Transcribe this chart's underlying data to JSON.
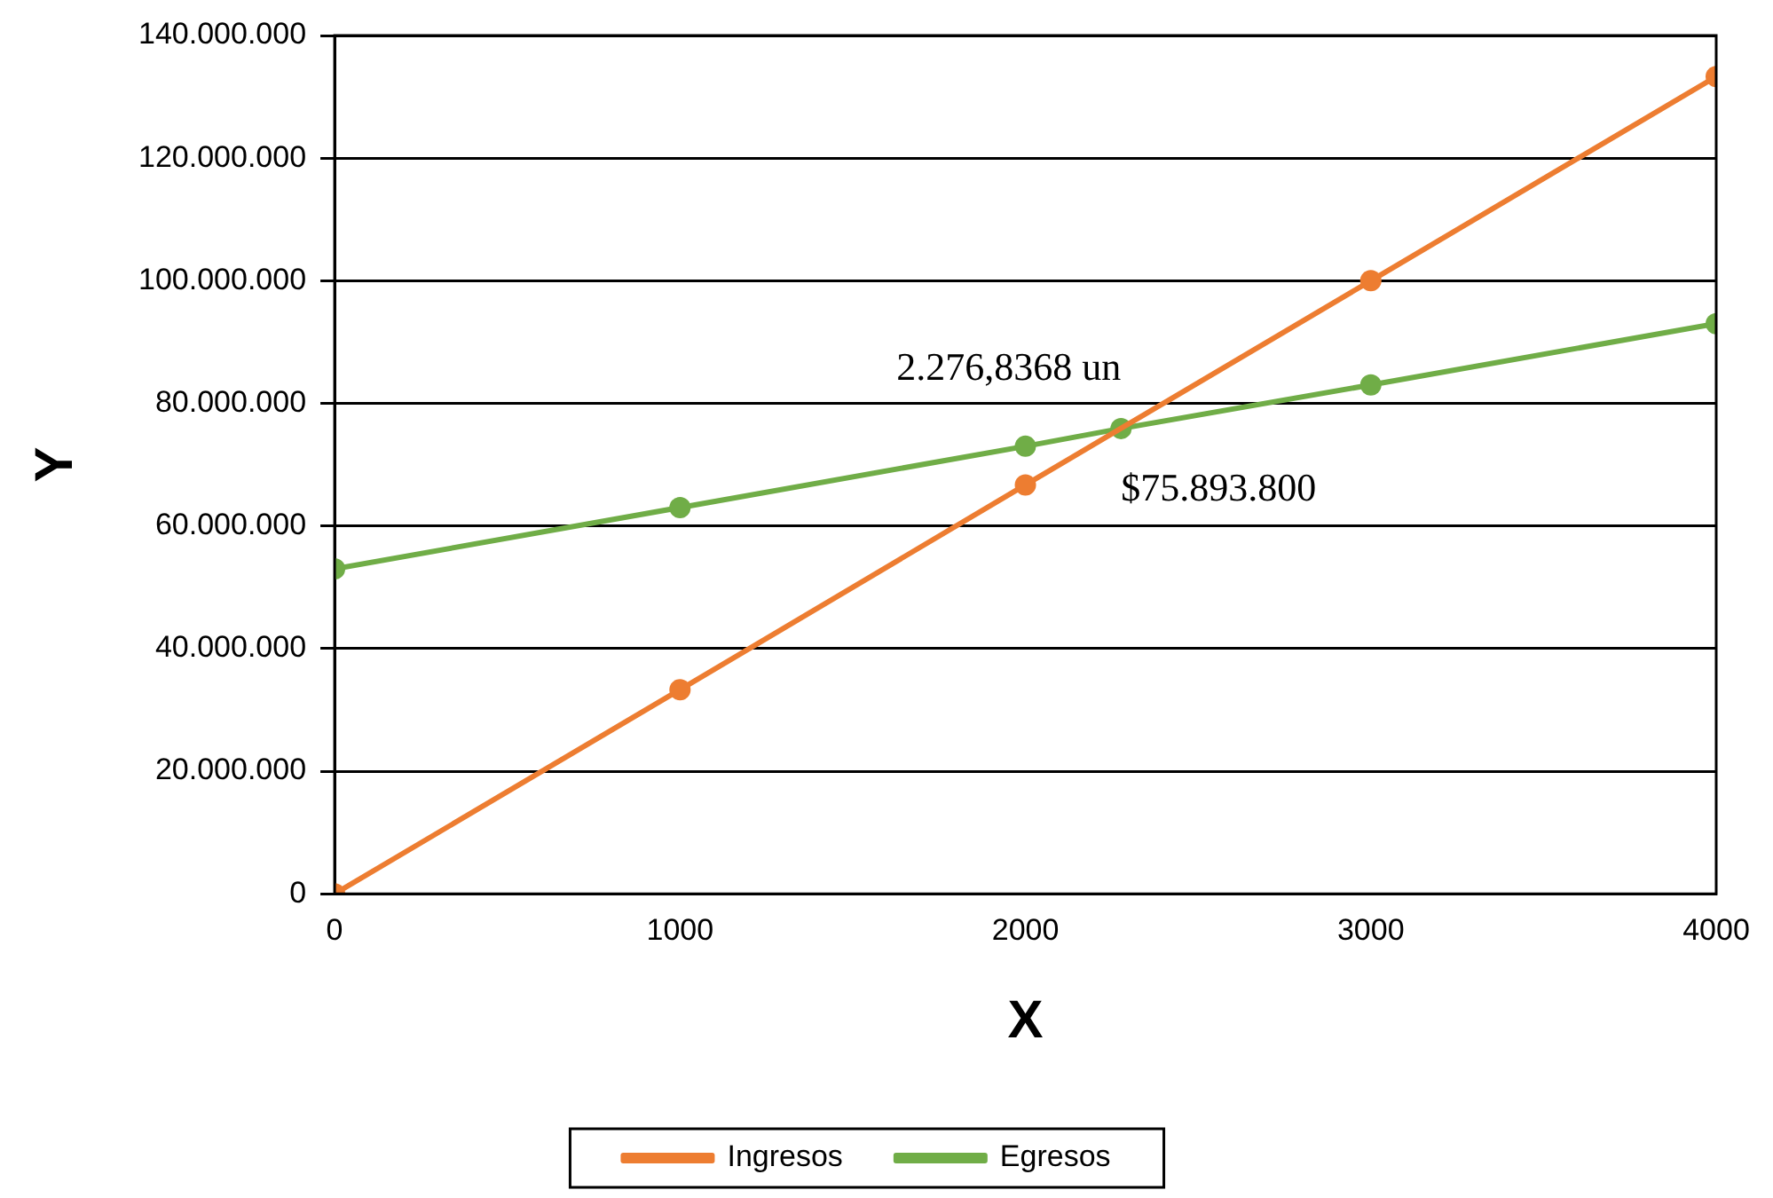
{
  "chart_data": {
    "type": "line",
    "xlabel": "X",
    "ylabel": "Y",
    "series": [
      {
        "name": "Ingresos",
        "color": "#ed7d31",
        "x": [
          0,
          1000,
          2000,
          3000,
          4000
        ],
        "values": [
          0,
          33300000,
          66700000,
          100000000,
          133300000
        ]
      },
      {
        "name": "Egresos",
        "color": "#70ad47",
        "x": [
          0,
          1000,
          2000,
          2276.8368,
          3000,
          4000
        ],
        "values": [
          53000000,
          63000000,
          73000000,
          75893800,
          83000000,
          93000000
        ]
      }
    ],
    "xlim": [
      0,
      4000
    ],
    "xticks": [
      0,
      1000,
      2000,
      3000,
      4000
    ],
    "ylim": [
      0,
      140000000
    ],
    "yticks": [
      {
        "value": 0,
        "label": "0"
      },
      {
        "value": 20000000,
        "label": "20.000.000"
      },
      {
        "value": 40000000,
        "label": "40.000.000"
      },
      {
        "value": 60000000,
        "label": "60.000.000"
      },
      {
        "value": 80000000,
        "label": "80.000.000"
      },
      {
        "value": 100000000,
        "label": "100.000.000"
      },
      {
        "value": 120000000,
        "label": "120.000.000"
      },
      {
        "value": 140000000,
        "label": "140.000.000"
      }
    ],
    "annotations": [
      {
        "text": "2.276,8368 un",
        "x": 2276.8368,
        "y": 75893800
      },
      {
        "text": "$75.893.800",
        "x": 2276.8368,
        "y": 75893800
      }
    ],
    "grid": "y",
    "legend": "bottom",
    "marker": "circle",
    "line_style": "solid"
  }
}
